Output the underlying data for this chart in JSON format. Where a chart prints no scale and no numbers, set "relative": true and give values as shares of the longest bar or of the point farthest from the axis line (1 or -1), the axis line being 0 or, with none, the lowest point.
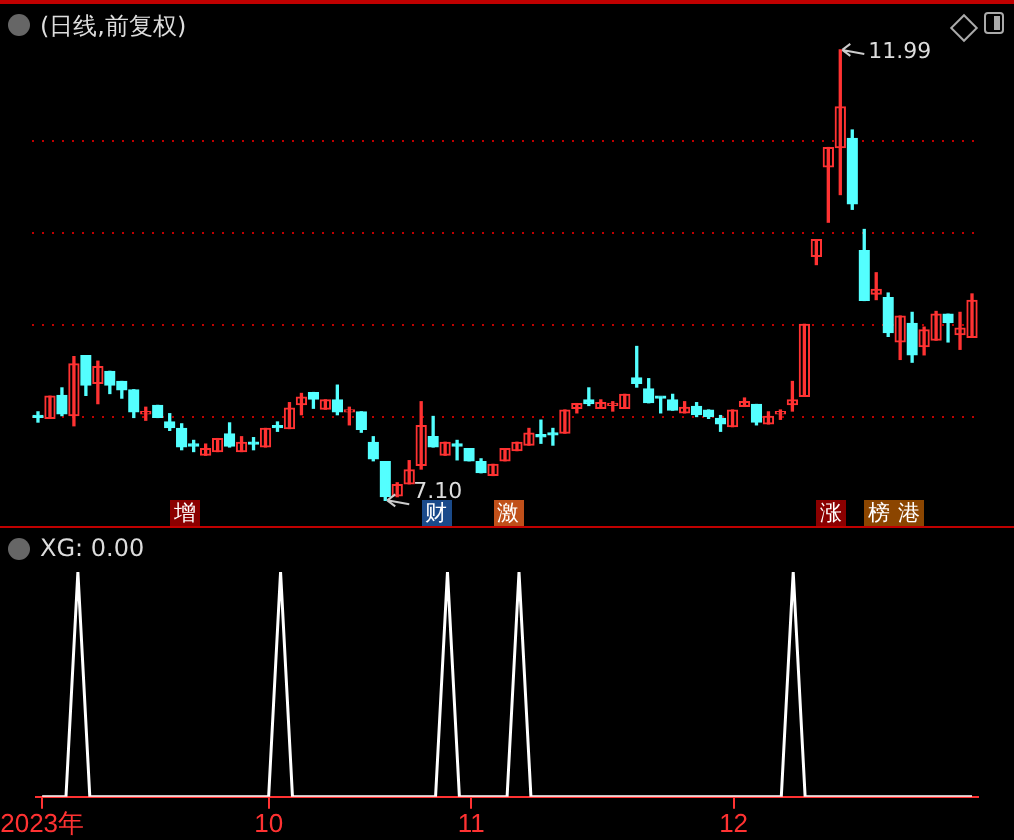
{
  "chart_data": [
    {
      "type": "candlestick",
      "title": "(日线,前复权)",
      "categories": [
        null,
        null,
        null,
        null,
        null,
        null,
        null,
        null,
        null,
        null,
        null,
        null,
        null,
        null,
        null,
        null,
        null,
        null,
        null,
        null,
        null,
        null,
        null,
        null,
        null,
        null,
        null,
        null,
        null,
        null,
        null,
        null,
        null,
        null,
        null,
        null,
        null,
        null,
        null,
        null,
        null,
        null,
        null,
        null,
        null,
        null,
        null,
        null,
        null,
        null,
        null,
        null,
        null,
        null,
        null,
        null,
        null,
        null,
        null,
        null,
        null,
        null,
        null,
        null,
        null,
        null,
        null,
        null,
        null,
        null,
        null,
        null,
        null,
        null,
        null,
        null,
        null,
        null,
        null
      ],
      "ohlc": [
        [
          8.01,
          8.06,
          7.95,
          8.0
        ],
        [
          7.99,
          8.23,
          7.99,
          8.23
        ],
        [
          8.24,
          8.32,
          8.02,
          8.04
        ],
        [
          8.02,
          8.66,
          7.91,
          8.58
        ],
        [
          8.67,
          8.67,
          8.24,
          8.35
        ],
        [
          8.37,
          8.61,
          8.15,
          8.55
        ],
        [
          8.5,
          8.5,
          8.26,
          8.35
        ],
        [
          8.39,
          8.39,
          8.21,
          8.3
        ],
        [
          8.3,
          8.3,
          8.0,
          8.06
        ],
        [
          8.04,
          8.11,
          7.97,
          8.05
        ],
        [
          8.13,
          8.13,
          8.0,
          8.0
        ],
        [
          7.95,
          8.04,
          7.86,
          7.89
        ],
        [
          7.88,
          7.93,
          7.65,
          7.68
        ],
        [
          7.7,
          7.75,
          7.63,
          7.69
        ],
        [
          7.59,
          7.71,
          7.59,
          7.66
        ],
        [
          7.63,
          7.77,
          7.63,
          7.77
        ],
        [
          7.82,
          7.94,
          7.68,
          7.69
        ],
        [
          7.63,
          7.79,
          7.63,
          7.73
        ],
        [
          7.72,
          7.78,
          7.65,
          7.71
        ],
        [
          7.68,
          7.88,
          7.68,
          7.88
        ],
        [
          7.9,
          7.95,
          7.85,
          7.89
        ],
        [
          7.88,
          8.16,
          7.88,
          8.1
        ],
        [
          8.14,
          8.26,
          8.03,
          8.22
        ],
        [
          8.27,
          8.27,
          8.1,
          8.2
        ],
        [
          8.09,
          8.19,
          8.09,
          8.19
        ],
        [
          8.19,
          8.35,
          8.03,
          8.06
        ],
        [
          8.06,
          8.11,
          7.92,
          8.07
        ],
        [
          8.06,
          8.06,
          7.84,
          7.87
        ],
        [
          7.73,
          7.79,
          7.53,
          7.55
        ],
        [
          7.52,
          7.52,
          7.1,
          7.14
        ],
        [
          7.15,
          7.29,
          7.14,
          7.27
        ],
        [
          7.28,
          7.53,
          7.28,
          7.43
        ],
        [
          7.48,
          8.17,
          7.44,
          7.91
        ],
        [
          7.79,
          8.01,
          7.68,
          7.68
        ],
        [
          7.59,
          7.73,
          7.59,
          7.73
        ],
        [
          7.7,
          7.75,
          7.54,
          7.69
        ],
        [
          7.66,
          7.66,
          7.53,
          7.53
        ],
        [
          7.52,
          7.55,
          7.4,
          7.4
        ],
        [
          7.37,
          7.49,
          7.37,
          7.49
        ],
        [
          7.53,
          7.66,
          7.53,
          7.66
        ],
        [
          7.64,
          7.73,
          7.64,
          7.73
        ],
        [
          7.7,
          7.88,
          7.7,
          7.83
        ],
        [
          7.8,
          7.97,
          7.72,
          7.79
        ],
        [
          7.82,
          7.88,
          7.7,
          7.81
        ],
        [
          7.83,
          8.08,
          7.83,
          8.08
        ],
        [
          8.1,
          8.15,
          8.05,
          8.15
        ],
        [
          8.19,
          8.32,
          8.13,
          8.15
        ],
        [
          8.1,
          8.19,
          8.1,
          8.16
        ],
        [
          8.13,
          8.17,
          8.07,
          8.14
        ],
        [
          8.1,
          8.25,
          8.1,
          8.25
        ],
        [
          8.43,
          8.77,
          8.33,
          8.37
        ],
        [
          8.31,
          8.42,
          8.16,
          8.16
        ],
        [
          8.22,
          8.22,
          8.05,
          8.21
        ],
        [
          8.19,
          8.25,
          8.08,
          8.08
        ],
        [
          8.05,
          8.17,
          8.05,
          8.11
        ],
        [
          8.12,
          8.16,
          8.01,
          8.03
        ],
        [
          8.08,
          8.08,
          7.99,
          8.01
        ],
        [
          7.99,
          8.02,
          7.85,
          7.93
        ],
        [
          7.9,
          8.08,
          7.9,
          8.08
        ],
        [
          8.12,
          8.21,
          8.12,
          8.17
        ],
        [
          8.14,
          8.14,
          7.92,
          7.95
        ],
        [
          7.93,
          8.06,
          7.93,
          8.01
        ],
        [
          8.04,
          8.08,
          7.98,
          8.05
        ],
        [
          8.14,
          8.39,
          8.07,
          8.19
        ],
        [
          8.23,
          9.01,
          8.23,
          9.01
        ],
        [
          9.75,
          9.93,
          9.66,
          9.93
        ],
        [
          10.72,
          10.93,
          10.12,
          10.93
        ],
        [
          10.93,
          11.99,
          10.42,
          11.37
        ],
        [
          11.03,
          11.12,
          10.26,
          10.32
        ],
        [
          9.81,
          10.04,
          9.27,
          9.27
        ],
        [
          9.34,
          9.57,
          9.28,
          9.39
        ],
        [
          9.3,
          9.35,
          8.88,
          8.92
        ],
        [
          8.82,
          9.1,
          8.63,
          9.1
        ],
        [
          9.02,
          9.14,
          8.6,
          8.68
        ],
        [
          8.77,
          8.98,
          8.68,
          8.95
        ],
        [
          8.84,
          9.15,
          8.84,
          9.12
        ],
        [
          9.12,
          9.12,
          8.82,
          9.03
        ],
        [
          8.9,
          9.14,
          8.74,
          8.97
        ],
        [
          8.87,
          9.34,
          8.87,
          9.27
        ]
      ],
      "colors": [
        "#54ffff",
        "#ff3232",
        "#54ffff",
        "#ff3232",
        "#54ffff",
        "#ff3232",
        "#54ffff",
        "#54ffff",
        "#54ffff",
        "#ff3232",
        "#54ffff",
        "#54ffff",
        "#54ffff",
        "#54ffff",
        "#ff3232",
        "#ff3232",
        "#54ffff",
        "#ff3232",
        "#54ffff",
        "#ff3232",
        "#54ffff",
        "#ff3232",
        "#ff3232",
        "#54ffff",
        "#ff3232",
        "#54ffff",
        "#ff3232",
        "#54ffff",
        "#54ffff",
        "#54ffff",
        "#ff3232",
        "#ff3232",
        "#ff3232",
        "#54ffff",
        "#ff3232",
        "#54ffff",
        "#54ffff",
        "#54ffff",
        "#ff3232",
        "#ff3232",
        "#ff3232",
        "#ff3232",
        "#54ffff",
        "#54ffff",
        "#ff3232",
        "#ff3232",
        "#54ffff",
        "#ff3232",
        "#ff3232",
        "#ff3232",
        "#54ffff",
        "#54ffff",
        "#54ffff",
        "#54ffff",
        "#ff3232",
        "#54ffff",
        "#54ffff",
        "#54ffff",
        "#ff3232",
        "#ff3232",
        "#54ffff",
        "#ff3232",
        "#ff3232",
        "#ff3232",
        "#ff3232",
        "#ff3232",
        "#ff3232",
        "#ff3232",
        "#54ffff",
        "#54ffff",
        "#ff3232",
        "#54ffff",
        "#ff3232",
        "#54ffff",
        "#ff3232",
        "#ff3232",
        "#54ffff",
        "#ff3232",
        "#ff3232"
      ],
      "yticks": [
        {
          "value": 8,
          "label": null
        },
        {
          "value": 9,
          "label": null
        },
        {
          "value": 10,
          "label": null
        },
        {
          "value": 11,
          "label": null
        }
      ],
      "grid": "y",
      "tick_labels": false,
      "annotations": [
        "11.99",
        "7.10",
        "增",
        "财",
        "激",
        "涨",
        "榜",
        "港"
      ]
    },
    {
      "type": "line",
      "title": "XG: 0.00",
      "categories": [
        "2023年",
        null,
        null,
        null,
        null,
        null,
        null,
        null,
        null,
        null,
        null,
        null,
        null,
        null,
        null,
        null,
        null,
        null,
        null,
        "10",
        null,
        null,
        null,
        null,
        null,
        null,
        null,
        null,
        null,
        null,
        null,
        null,
        null,
        null,
        null,
        null,
        "11",
        null,
        null,
        null,
        null,
        null,
        null,
        null,
        null,
        null,
        null,
        null,
        null,
        null,
        null,
        null,
        null,
        null,
        null,
        null,
        null,
        null,
        "12",
        null,
        null,
        null,
        null,
        null,
        null,
        null,
        null,
        null,
        null,
        null,
        null,
        null,
        null,
        null,
        null,
        null,
        null,
        null,
        null
      ],
      "series": [
        {
          "color": "#ffffff",
          "values": [
            0,
            0,
            0,
            1,
            0,
            0,
            0,
            0,
            0,
            0,
            0,
            0,
            0,
            0,
            0,
            0,
            0,
            0,
            0,
            0,
            1,
            0,
            0,
            0,
            0,
            0,
            0,
            0,
            0,
            0,
            0,
            0,
            0,
            0,
            1,
            0,
            0,
            0,
            0,
            0,
            1,
            0,
            0,
            0,
            0,
            0,
            0,
            0,
            0,
            0,
            0,
            0,
            0,
            0,
            0,
            0,
            0,
            0,
            0,
            0,
            0,
            0,
            0,
            1,
            0,
            0,
            0,
            0,
            0,
            0,
            0,
            0,
            0,
            0,
            0,
            0,
            0,
            0,
            0
          ]
        }
      ],
      "relative": true,
      "tick_labels": "x",
      "marker": "none"
    }
  ]
}
